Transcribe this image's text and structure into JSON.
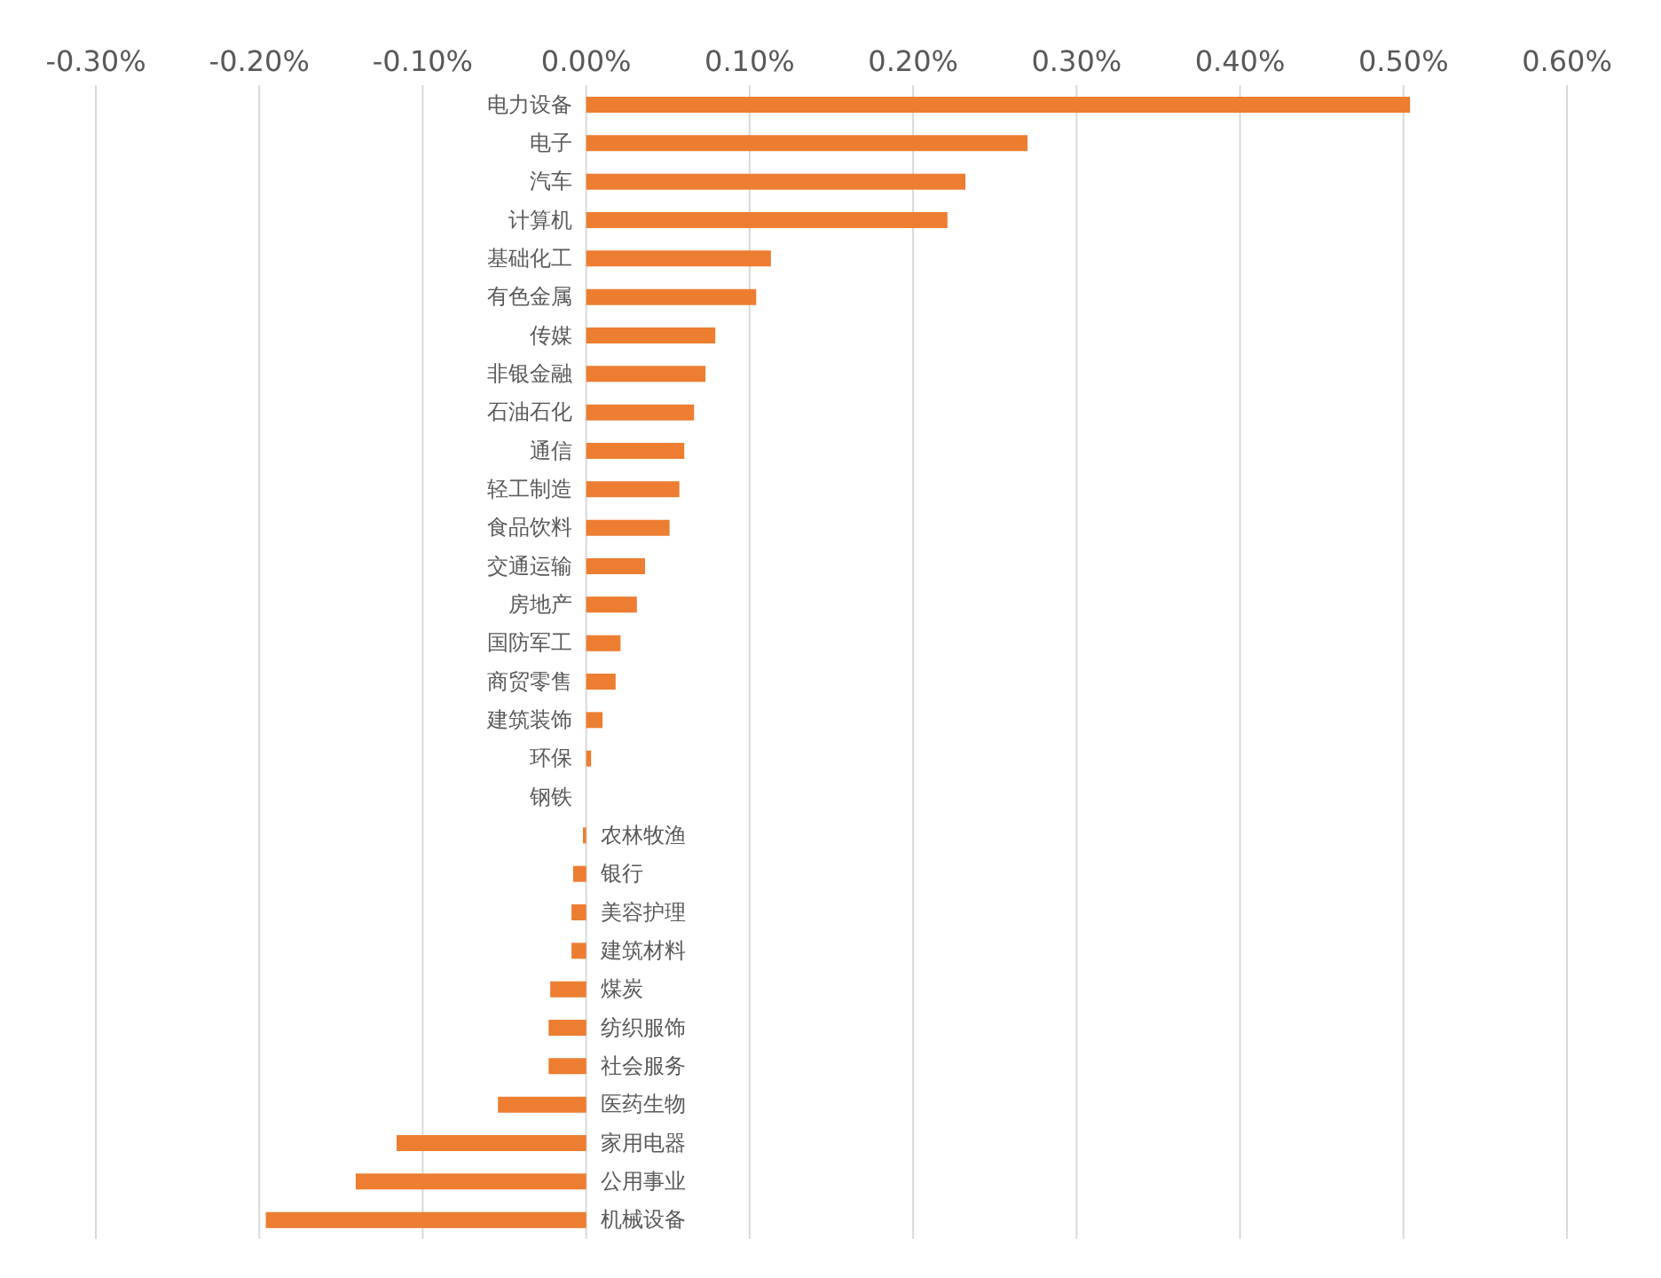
{
  "chart_data": {
    "type": "bar",
    "orientation": "horizontal",
    "categories": [
      "电力设备",
      "电子",
      "汽车",
      "计算机",
      "基础化工",
      "有色金属",
      "传媒",
      "非银金融",
      "石油石化",
      "通信",
      "轻工制造",
      "食品饮料",
      "交通运输",
      "房地产",
      "国防军工",
      "商贸零售",
      "建筑装饰",
      "环保",
      "钢铁",
      "农林牧渔",
      "银行",
      "美容护理",
      "建筑材料",
      "煤炭",
      "纺织服饰",
      "社会服务",
      "医药生物",
      "家用电器",
      "公用事业",
      "机械设备"
    ],
    "values": [
      0.504,
      0.27,
      0.232,
      0.221,
      0.113,
      0.104,
      0.079,
      0.073,
      0.066,
      0.06,
      0.057,
      0.051,
      0.036,
      0.031,
      0.021,
      0.018,
      0.01,
      0.003,
      0,
      -0.002,
      -0.008,
      -0.009,
      -0.009,
      -0.022,
      -0.023,
      -0.023,
      -0.054,
      -0.116,
      -0.141,
      -0.196
    ],
    "color": "#ed7d31",
    "xlim": [
      -0.3,
      0.6
    ],
    "xticks": [
      {
        "value": -0.3,
        "label": "-0.30%"
      },
      {
        "value": -0.2,
        "label": "-0.20%"
      },
      {
        "value": -0.1,
        "label": "-0.10%"
      },
      {
        "value": 0,
        "label": "0.00%"
      },
      {
        "value": 0.1,
        "label": "0.10%"
      },
      {
        "value": 0.2,
        "label": "0.20%"
      },
      {
        "value": 0.3,
        "label": "0.30%"
      },
      {
        "value": 0.4,
        "label": "0.40%"
      },
      {
        "value": 0.5,
        "label": "0.50%"
      },
      {
        "value": 0.6,
        "label": "0.60%"
      }
    ],
    "grid": "x"
  }
}
